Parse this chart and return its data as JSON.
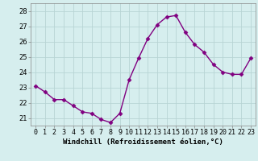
{
  "x": [
    0,
    1,
    2,
    3,
    4,
    5,
    6,
    7,
    8,
    9,
    10,
    11,
    12,
    13,
    14,
    15,
    16,
    17,
    18,
    19,
    20,
    21,
    22,
    23
  ],
  "y": [
    23.1,
    22.7,
    22.2,
    22.2,
    21.8,
    21.4,
    21.3,
    20.9,
    20.7,
    21.3,
    23.5,
    24.9,
    26.2,
    27.1,
    27.6,
    27.7,
    26.6,
    25.8,
    25.3,
    24.5,
    24.0,
    23.85,
    23.85,
    24.9
  ],
  "line_color": "#800080",
  "marker": "D",
  "marker_size": 2.5,
  "linewidth": 1.0,
  "xlabel": "Windchill (Refroidissement éolien,°C)",
  "ylim": [
    20.5,
    28.5
  ],
  "xlim": [
    -0.5,
    23.5
  ],
  "yticks": [
    21,
    22,
    23,
    24,
    25,
    26,
    27,
    28
  ],
  "xtick_labels": [
    "0",
    "1",
    "2",
    "3",
    "4",
    "5",
    "6",
    "7",
    "8",
    "9",
    "10",
    "11",
    "12",
    "13",
    "14",
    "15",
    "16",
    "17",
    "18",
    "19",
    "20",
    "21",
    "22",
    "23"
  ],
  "bg_color": "#d6eeee",
  "grid_color": "#b8d4d4",
  "xlabel_fontsize": 6.5,
  "tick_fontsize": 6.0
}
